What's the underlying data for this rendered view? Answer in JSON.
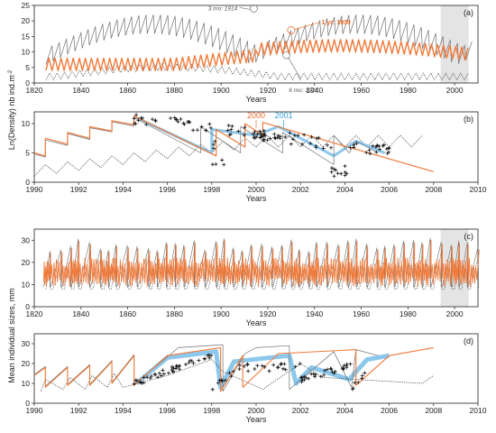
{
  "figure": {
    "ylabel_top": "Ln(Density) nb ind.m",
    "ylabel_top_sup": "-2",
    "ylabel_bottom": "Mean individual sizes, mm"
  },
  "colors": {
    "orange": "#f07a3a",
    "gray": "#707070",
    "dotted": "#333333",
    "blue": "#8cc8ec",
    "points": "#111111",
    "shade": "#e4e4e4"
  },
  "chart_data": [
    {
      "panel": "(a)",
      "type": "line",
      "xlabel": "Years",
      "xlim": [
        1820,
        2010
      ],
      "ylim": [
        0,
        25
      ],
      "xticks": [
        1820,
        1840,
        1860,
        1880,
        1900,
        1920,
        1940,
        1960,
        1980,
        2000
      ],
      "yticks": [
        0,
        5,
        10,
        15,
        20,
        25
      ],
      "shaded_interval": [
        1994,
        2006
      ],
      "annotations": [
        {
          "text": "3 mo: 1914",
          "x": 1914,
          "y": 24
        },
        {
          "text": "1 yr: 1930",
          "x": 1930,
          "y": 17
        },
        {
          "text": "6 mo: 1928",
          "x": 1928,
          "y": 9
        }
      ]
    },
    {
      "panel": "(b)",
      "type": "line",
      "xlabel": "Years",
      "xlim": [
        1990,
        2010
      ],
      "ylim": [
        0,
        12
      ],
      "xticks": [
        1990,
        1992,
        1994,
        1996,
        1998,
        2000,
        2002,
        2004,
        2006,
        2008,
        2010
      ],
      "yticks": [
        0,
        5,
        10
      ],
      "annotations": [
        {
          "text": "2000",
          "x": 2000,
          "color": "orange"
        },
        {
          "text": "2001",
          "x": 2001,
          "color": "blue"
        }
      ]
    },
    {
      "panel": "(c)",
      "type": "line",
      "xlabel": "Years",
      "xlim": [
        1820,
        2010
      ],
      "ylim": [
        0,
        35
      ],
      "xticks": [
        1820,
        1840,
        1860,
        1880,
        1900,
        1920,
        1940,
        1960,
        1980,
        2000
      ],
      "yticks": [
        0,
        10,
        20,
        30
      ],
      "shaded_interval": [
        1994,
        2006
      ]
    },
    {
      "panel": "(d)",
      "type": "line",
      "xlabel": "Years",
      "xlim": [
        1990,
        2010
      ],
      "ylim": [
        0,
        35
      ],
      "xticks": [
        1990,
        1992,
        1994,
        1996,
        1998,
        2000,
        2002,
        2004,
        2006,
        2008,
        2010
      ],
      "yticks": [
        0,
        10,
        20,
        30
      ]
    }
  ]
}
